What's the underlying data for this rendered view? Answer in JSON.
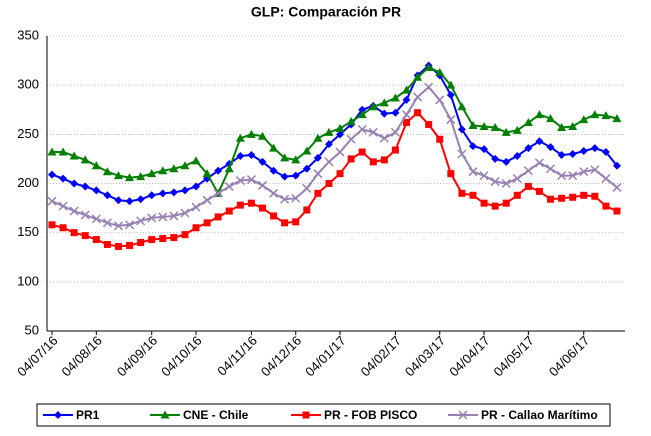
{
  "chart_data": {
    "type": "line",
    "title": "GLP: Comparación PR",
    "categories": [
      "04/07/16",
      null,
      null,
      null,
      "04/08/16",
      null,
      null,
      null,
      null,
      "04/09/16",
      null,
      null,
      null,
      "04/10/16",
      null,
      null,
      null,
      null,
      "04/11/16",
      null,
      null,
      null,
      "04/12/16",
      null,
      null,
      null,
      "04/01/17",
      null,
      null,
      null,
      null,
      "04/02/17",
      null,
      null,
      null,
      "04/03/17",
      null,
      null,
      null,
      "04/04/17",
      null,
      null,
      null,
      "04/05/17",
      null,
      null,
      null,
      null,
      "04/06/17",
      null,
      null,
      null
    ],
    "series": [
      {
        "name": "PR1",
        "color": "#0000ff",
        "marker": "diamond",
        "values": [
          209,
          205,
          200,
          197,
          193,
          188,
          183,
          182,
          184,
          188,
          190,
          191,
          193,
          197,
          205,
          213,
          220,
          228,
          229,
          222,
          213,
          207,
          208,
          215,
          226,
          240,
          250,
          260,
          275,
          279,
          271,
          272,
          285,
          310,
          320,
          310,
          290,
          255,
          238,
          235,
          225,
          222,
          228,
          236,
          243,
          237,
          229,
          230,
          233,
          236,
          232,
          218
        ]
      },
      {
        "name": "CNE - Chile",
        "color": "#008000",
        "marker": "triangle",
        "values": [
          232,
          232,
          228,
          224,
          218,
          212,
          208,
          206,
          207,
          210,
          213,
          215,
          218,
          223,
          210,
          190,
          215,
          246,
          250,
          248,
          236,
          226,
          224,
          233,
          246,
          252,
          256,
          263,
          270,
          278,
          282,
          287,
          295,
          308,
          318,
          313,
          300,
          278,
          259,
          258,
          257,
          252,
          254,
          262,
          270,
          266,
          257,
          258,
          265,
          270,
          269,
          266
        ]
      },
      {
        "name": "PR - FOB PISCO",
        "color": "#ff0000",
        "marker": "square",
        "values": [
          158,
          155,
          150,
          147,
          143,
          138,
          136,
          137,
          140,
          143,
          144,
          145,
          148,
          155,
          160,
          166,
          172,
          178,
          180,
          175,
          167,
          160,
          161,
          173,
          190,
          200,
          210,
          225,
          232,
          222,
          224,
          234,
          262,
          272,
          260,
          245,
          210,
          190,
          188,
          180,
          177,
          180,
          188,
          197,
          192,
          184,
          185,
          186,
          188,
          187,
          177,
          172
        ]
      },
      {
        "name": "PR - Callao Marítimo",
        "color": "#9980b3",
        "marker": "x",
        "values": [
          182,
          177,
          172,
          168,
          164,
          160,
          157,
          158,
          162,
          165,
          166,
          167,
          170,
          176,
          183,
          190,
          197,
          203,
          204,
          198,
          190,
          184,
          185,
          195,
          210,
          222,
          232,
          245,
          255,
          252,
          246,
          252,
          270,
          288,
          298,
          285,
          265,
          230,
          212,
          208,
          202,
          200,
          205,
          213,
          221,
          215,
          208,
          208,
          212,
          214,
          205,
          196
        ]
      }
    ],
    "ylim": [
      50,
      350
    ],
    "yticks": [
      50,
      100,
      150,
      200,
      250,
      300,
      350
    ],
    "grid": true,
    "legend": "bottom"
  }
}
